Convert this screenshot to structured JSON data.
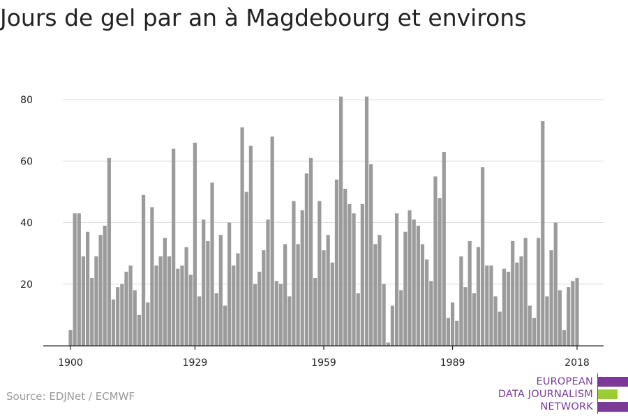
{
  "chart_data": {
    "type": "bar",
    "title": "Jours de gel par an à Magdebourg et environs",
    "xlabel": "",
    "ylabel": "",
    "x": [
      1900,
      1901,
      1902,
      1903,
      1904,
      1905,
      1906,
      1907,
      1908,
      1909,
      1910,
      1911,
      1912,
      1913,
      1914,
      1915,
      1916,
      1917,
      1918,
      1919,
      1920,
      1921,
      1922,
      1923,
      1924,
      1925,
      1926,
      1927,
      1928,
      1929,
      1930,
      1931,
      1932,
      1933,
      1934,
      1935,
      1936,
      1937,
      1938,
      1939,
      1940,
      1941,
      1942,
      1943,
      1944,
      1945,
      1946,
      1947,
      1948,
      1949,
      1950,
      1951,
      1952,
      1953,
      1954,
      1955,
      1956,
      1957,
      1958,
      1959,
      1960,
      1961,
      1962,
      1963,
      1964,
      1965,
      1966,
      1967,
      1968,
      1969,
      1970,
      1971,
      1972,
      1973,
      1974,
      1975,
      1976,
      1977,
      1978,
      1979,
      1980,
      1981,
      1982,
      1983,
      1984,
      1985,
      1986,
      1987,
      1988,
      1989,
      1990,
      1991,
      1992,
      1993,
      1994,
      1995,
      1996,
      1997,
      1998,
      1999,
      2000,
      2001,
      2002,
      2003,
      2004,
      2005,
      2006,
      2007,
      2008,
      2009,
      2010,
      2011,
      2012,
      2013,
      2014,
      2015,
      2016,
      2017,
      2018
    ],
    "values": [
      5,
      43,
      43,
      29,
      37,
      22,
      29,
      36,
      39,
      61,
      15,
      19,
      20,
      24,
      26,
      18,
      10,
      49,
      14,
      45,
      26,
      29,
      35,
      29,
      64,
      25,
      26,
      32,
      23,
      66,
      16,
      41,
      34,
      53,
      17,
      36,
      13,
      40,
      26,
      30,
      71,
      50,
      65,
      20,
      24,
      31,
      41,
      68,
      21,
      20,
      33,
      16,
      47,
      33,
      44,
      56,
      61,
      22,
      47,
      31,
      36,
      27,
      54,
      81,
      51,
      46,
      43,
      17,
      46,
      81,
      59,
      33,
      36,
      20,
      1,
      13,
      43,
      18,
      37,
      44,
      41,
      39,
      33,
      28,
      21,
      55,
      48,
      63,
      9,
      14,
      8,
      29,
      19,
      34,
      17,
      32,
      58,
      26,
      26,
      16,
      11,
      25,
      24,
      34,
      27,
      29,
      35,
      13,
      9,
      35,
      73,
      16,
      31,
      40,
      18,
      5,
      19,
      21,
      22
    ],
    "x_ticks": [
      "1900",
      "1929",
      "1959",
      "1989",
      "2018"
    ],
    "y_ticks": [
      20,
      40,
      60,
      80
    ],
    "ylim": [
      0,
      86
    ],
    "grid": true,
    "bar_color": "#9b9b9b",
    "grid_color": "#dddddd",
    "axis_color": "#222222"
  },
  "source": "Source: EDJNet / ECMWF",
  "logo": {
    "lines": [
      "EUROPEAN",
      "DATA JOURNALISM",
      "NETWORK"
    ],
    "purple": "#7b3a9a",
    "green": "#9acd32"
  }
}
